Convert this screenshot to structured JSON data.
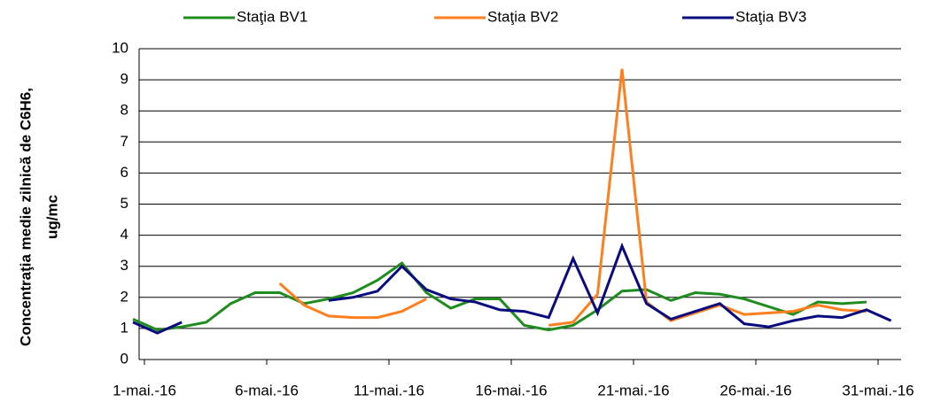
{
  "chart_data": {
    "type": "line",
    "y_label": [
      "Concentraţia medie zilnică de C6H6,",
      "ug/mc"
    ],
    "categories": [
      "1-mai.-16",
      null,
      null,
      null,
      null,
      "6-mai.-16",
      null,
      null,
      null,
      null,
      "11-mai.-16",
      null,
      null,
      null,
      null,
      "16-mai.-16",
      null,
      null,
      null,
      null,
      "21-mai.-16",
      null,
      null,
      null,
      null,
      "26-mai.-16",
      null,
      null,
      null,
      null,
      "31-mai.-16",
      null
    ],
    "series": [
      {
        "name": "Staţia BV1",
        "color": "#1e8c1e",
        "values": [
          1.3,
          0.95,
          1.05,
          1.2,
          1.8,
          2.15,
          2.15,
          1.8,
          1.95,
          2.15,
          2.55,
          3.1,
          2.15,
          1.65,
          1.95,
          1.95,
          1.1,
          0.95,
          1.1,
          1.6,
          2.2,
          2.25,
          1.9,
          2.15,
          2.1,
          1.95,
          1.7,
          1.45,
          1.85,
          1.8,
          1.85,
          null
        ]
      },
      {
        "name": "Staţia BV2",
        "color": "#ff7f1e",
        "values": [
          null,
          null,
          null,
          null,
          null,
          null,
          2.45,
          1.75,
          1.4,
          1.35,
          1.35,
          1.55,
          1.95,
          null,
          null,
          null,
          null,
          1.1,
          1.2,
          2.1,
          9.35,
          1.85,
          1.25,
          1.5,
          1.75,
          1.45,
          1.5,
          1.55,
          1.75,
          1.6,
          1.55,
          null
        ]
      },
      {
        "name": "Staţia BV3",
        "color": "#0a0a80",
        "values": [
          1.2,
          0.85,
          1.2,
          null,
          null,
          null,
          null,
          null,
          1.9,
          2.0,
          2.2,
          3.0,
          2.25,
          1.95,
          1.85,
          1.6,
          1.55,
          1.35,
          3.25,
          1.5,
          3.65,
          1.8,
          1.3,
          1.55,
          1.8,
          1.15,
          1.05,
          1.25,
          1.4,
          1.35,
          1.6,
          1.25
        ]
      }
    ],
    "ylim": [
      0,
      10
    ],
    "yticks": [
      0,
      1,
      2,
      3,
      4,
      5,
      6,
      7,
      8,
      9,
      10
    ],
    "grid": true
  }
}
